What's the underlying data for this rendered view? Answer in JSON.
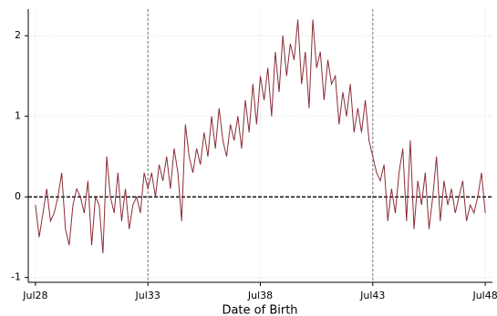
{
  "chart_data": {
    "type": "line",
    "xlabel": "Date of Birth",
    "x": [
      28.5,
      28.667,
      28.833,
      29,
      29.167,
      29.333,
      29.5,
      29.667,
      29.833,
      30,
      30.167,
      30.333,
      30.5,
      30.667,
      30.833,
      31,
      31.167,
      31.333,
      31.5,
      31.667,
      31.833,
      32,
      32.167,
      32.333,
      32.5,
      32.667,
      32.833,
      33,
      33.167,
      33.333,
      33.5,
      33.667,
      33.833,
      34,
      34.167,
      34.333,
      34.5,
      34.667,
      34.833,
      35,
      35.167,
      35.333,
      35.5,
      35.667,
      35.833,
      36,
      36.167,
      36.333,
      36.5,
      36.667,
      36.833,
      37,
      37.167,
      37.333,
      37.5,
      37.667,
      37.833,
      38,
      38.167,
      38.333,
      38.5,
      38.667,
      38.833,
      39,
      39.167,
      39.333,
      39.5,
      39.667,
      39.833,
      40,
      40.167,
      40.333,
      40.5,
      40.667,
      40.833,
      41,
      41.167,
      41.333,
      41.5,
      41.667,
      41.833,
      42,
      42.167,
      42.333,
      42.5,
      42.667,
      42.833,
      43,
      43.167,
      43.333,
      43.5,
      43.667,
      43.833,
      44,
      44.167,
      44.333,
      44.5,
      44.667,
      44.833,
      45,
      45.167,
      45.333,
      45.5,
      45.667,
      45.833,
      46,
      46.167,
      46.333,
      46.5,
      46.667,
      46.833,
      47,
      47.167,
      47.333,
      47.5,
      47.667,
      47.833,
      48,
      48.167,
      48.333,
      48.5
    ],
    "series": [
      {
        "color": "#8b2c36",
        "values": [
          -0.1,
          -0.5,
          -0.2,
          0.1,
          -0.3,
          -0.2,
          0.0,
          0.3,
          -0.4,
          -0.6,
          -0.1,
          0.1,
          0.0,
          -0.2,
          0.2,
          -0.6,
          0.0,
          -0.1,
          -0.7,
          0.5,
          0.0,
          -0.2,
          0.3,
          -0.3,
          0.1,
          -0.4,
          -0.1,
          0.0,
          -0.2,
          0.3,
          0.1,
          0.3,
          0.0,
          0.4,
          0.2,
          0.5,
          0.1,
          0.6,
          0.3,
          -0.3,
          0.9,
          0.5,
          0.3,
          0.6,
          0.4,
          0.8,
          0.5,
          1.0,
          0.6,
          1.1,
          0.7,
          0.5,
          0.9,
          0.7,
          1.0,
          0.6,
          1.2,
          0.8,
          1.4,
          0.9,
          1.5,
          1.2,
          1.6,
          1.0,
          1.8,
          1.3,
          2.0,
          1.5,
          1.9,
          1.7,
          2.2,
          1.4,
          1.8,
          1.1,
          2.2,
          1.6,
          1.8,
          1.2,
          1.7,
          1.4,
          1.5,
          0.9,
          1.3,
          1.0,
          1.4,
          0.8,
          1.1,
          0.8,
          1.2,
          0.7,
          0.5,
          0.3,
          0.2,
          0.4,
          -0.3,
          0.1,
          -0.2,
          0.3,
          0.6,
          -0.3,
          0.7,
          -0.4,
          0.2,
          -0.1,
          0.3,
          -0.4,
          0.0,
          0.5,
          -0.3,
          0.2,
          -0.1,
          0.1,
          -0.2,
          0.0,
          0.2,
          -0.3,
          -0.1,
          -0.2,
          0.0,
          0.3,
          -0.2
        ]
      }
    ],
    "xlim": [
      28.18,
      48.82
    ],
    "ylim": [
      -1.06,
      2.33
    ],
    "xticks": [
      {
        "value": 28.5,
        "label": "Jul28"
      },
      {
        "value": 33.5,
        "label": "Jul33"
      },
      {
        "value": 38.5,
        "label": "Jul38"
      },
      {
        "value": 43.5,
        "label": "Jul43"
      },
      {
        "value": 48.5,
        "label": "Jul48"
      }
    ],
    "yticks": [
      -1,
      0,
      1,
      2
    ],
    "grid": true,
    "vlines": [
      33.5,
      43.5
    ],
    "hline": 0
  }
}
